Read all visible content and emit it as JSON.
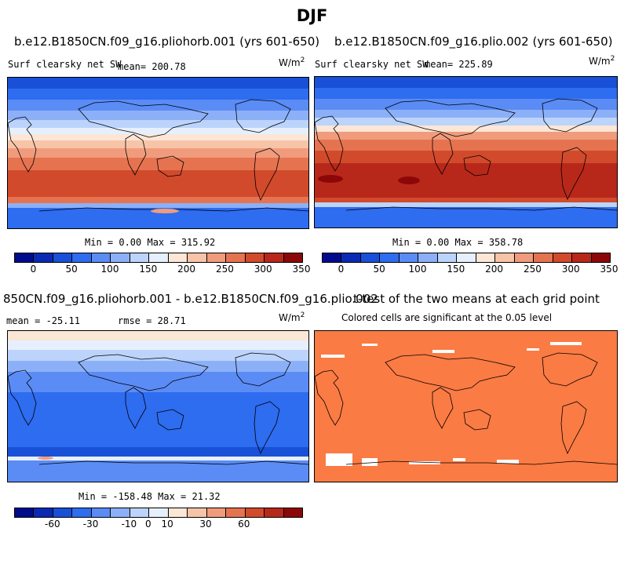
{
  "title": "DJF",
  "panels": {
    "top_left": {
      "case": "b.e12.B1850CN.f09_g16.pliohorb.001 (yrs 601-650)",
      "variable": "Surf clearsky net SW",
      "mean": "mean= 200.78",
      "units_base": "W/m",
      "units_exp": "2",
      "minmax": "Min =   0.00 Max = 315.92"
    },
    "top_right": {
      "case": "b.e12.B1850CN.f09_g16.plio.002 (yrs 601-650)",
      "variable": "Surf clearsky net SW",
      "mean": "mean= 225.89",
      "units_base": "W/m",
      "units_exp": "2",
      "minmax": "Min =   0.00 Max = 358.78"
    },
    "bottom_left": {
      "case": "850CN.f09_g16.pliohorb.001 - b.e12.B1850CN.f09_g16.plio.002",
      "mean": "mean = -25.11",
      "rmse": "rmse =  28.71",
      "units_base": "W/m",
      "units_exp": "2",
      "minmax": "Min = -158.48 Max =  21.32"
    },
    "bottom_right": {
      "case": "t-test of the two means at each grid point",
      "subtitle": "Colored cells are significant at the 0.05 level"
    }
  },
  "colorbars": {
    "absolute": {
      "colors": [
        "#000c8c",
        "#0a2ab4",
        "#1850d8",
        "#2e6cf0",
        "#5b8cf5",
        "#8cb0f8",
        "#bcd4fb",
        "#e6effc",
        "#fce6d6",
        "#f8c4a8",
        "#f09c7c",
        "#e67350",
        "#d24a2c",
        "#b8281a",
        "#8c0808"
      ],
      "tick_labels": [
        "0",
        "50",
        "100",
        "150",
        "200",
        "250",
        "300",
        "350"
      ]
    },
    "difference": {
      "colors": [
        "#000c8c",
        "#0a2ab4",
        "#1850d8",
        "#2e6cf0",
        "#5b8cf5",
        "#8cb0f8",
        "#bcd4fb",
        "#e6effc",
        "#fce6d6",
        "#f8c4a8",
        "#f09c7c",
        "#e67350",
        "#d24a2c",
        "#b8281a",
        "#8c0808"
      ],
      "tick_labels": [
        "-60",
        "-30",
        "-10",
        "0",
        "10",
        "30",
        "60"
      ]
    }
  }
}
